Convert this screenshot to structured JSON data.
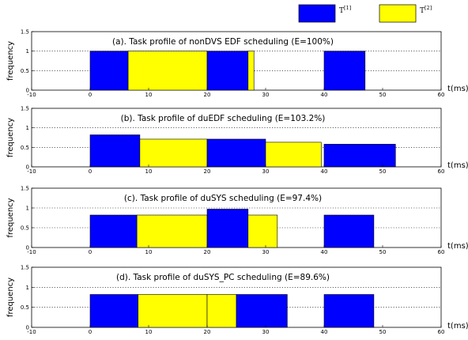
{
  "legend": {
    "items": [
      {
        "label": "T",
        "sup": "[1]",
        "color": "#0000FF"
      },
      {
        "label": "T",
        "sup": "[2]",
        "color": "#FFFF00"
      }
    ],
    "placement": "top-right, outside panels"
  },
  "chart_data": [
    {
      "type": "bar",
      "title": "(a). Task profile of nonDVS EDF scheduling (E=100%)",
      "ylabel": "frequency",
      "xlabel": "t(ms)",
      "xlim": [
        -10,
        60
      ],
      "ylim": [
        0,
        1.5
      ],
      "xticks": [
        "-10",
        "0",
        "10",
        "20",
        "30",
        "40",
        "50",
        "60"
      ],
      "yticks": [
        "0",
        "0.5",
        "1",
        "1.5"
      ],
      "grid": "horizontal dotted at 0.5 and 1",
      "segments": [
        {
          "task": 1,
          "start": 0,
          "end": 6.5,
          "value": 1.0
        },
        {
          "task": 2,
          "start": 6.5,
          "end": 20,
          "value": 1.0
        },
        {
          "task": 1,
          "start": 20,
          "end": 27,
          "value": 1.0
        },
        {
          "task": 2,
          "start": 27,
          "end": 28,
          "value": 1.0
        },
        {
          "task": 1,
          "start": 40,
          "end": 47,
          "value": 1.0
        }
      ]
    },
    {
      "type": "bar",
      "title": "(b). Task profile of duEDF scheduling (E=103.2%)",
      "ylabel": "frequency",
      "xlabel": "t(ms)",
      "xlim": [
        -10,
        60
      ],
      "ylim": [
        0,
        1.5
      ],
      "xticks": [
        "-10",
        "0",
        "10",
        "20",
        "30",
        "40",
        "50",
        "60"
      ],
      "yticks": [
        "0",
        "0.5",
        "1",
        "1.5"
      ],
      "grid": "horizontal dotted at 0.5 and 1",
      "segments": [
        {
          "task": 1,
          "start": 0,
          "end": 8.5,
          "value": 0.82
        },
        {
          "task": 2,
          "start": 8.5,
          "end": 20,
          "value": 0.71
        },
        {
          "task": 1,
          "start": 20,
          "end": 30,
          "value": 0.71
        },
        {
          "task": 2,
          "start": 30,
          "end": 39.5,
          "value": 0.63
        },
        {
          "task": 1,
          "start": 40,
          "end": 52.2,
          "value": 0.58
        }
      ]
    },
    {
      "type": "bar",
      "title": "(c). Task profile of duSYS scheduling (E=97.4%)",
      "ylabel": "frequency",
      "xlabel": "t(ms)",
      "xlim": [
        -10,
        60
      ],
      "ylim": [
        0,
        1.5
      ],
      "xticks": [
        "-10",
        "0",
        "10",
        "20",
        "30",
        "40",
        "50",
        "60"
      ],
      "yticks": [
        "0",
        "0.5",
        "1",
        "1.5"
      ],
      "grid": "horizontal dotted at 0.5 and 1",
      "segments": [
        {
          "task": 1,
          "start": 0,
          "end": 8,
          "value": 0.82
        },
        {
          "task": 2,
          "start": 8,
          "end": 20,
          "value": 0.82
        },
        {
          "task": 1,
          "start": 20,
          "end": 27,
          "value": 0.97
        },
        {
          "task": 2,
          "start": 27,
          "end": 32,
          "value": 0.82
        },
        {
          "task": 1,
          "start": 40,
          "end": 48.5,
          "value": 0.82
        }
      ]
    },
    {
      "type": "bar",
      "title": "(d). Task profile of duSYS_PC scheduling (E=89.6%)",
      "ylabel": "frequency",
      "xlabel": "t(ms)",
      "xlim": [
        -10,
        60
      ],
      "ylim": [
        0,
        1.5
      ],
      "xticks": [
        "-10",
        "0",
        "10",
        "20",
        "30",
        "40",
        "50",
        "60"
      ],
      "yticks": [
        "0",
        "0.5",
        "1",
        "1.5"
      ],
      "grid": "horizontal dotted at 0.5 and 1",
      "segments": [
        {
          "task": 1,
          "start": 0,
          "end": 8.2,
          "value": 0.82
        },
        {
          "task": 2,
          "start": 8.2,
          "end": 20,
          "value": 0.82
        },
        {
          "task": 2,
          "start": 20,
          "end": 25,
          "value": 0.82
        },
        {
          "task": 1,
          "start": 25,
          "end": 33.7,
          "value": 0.82
        },
        {
          "task": 1,
          "start": 40,
          "end": 48.5,
          "value": 0.82
        }
      ]
    }
  ]
}
